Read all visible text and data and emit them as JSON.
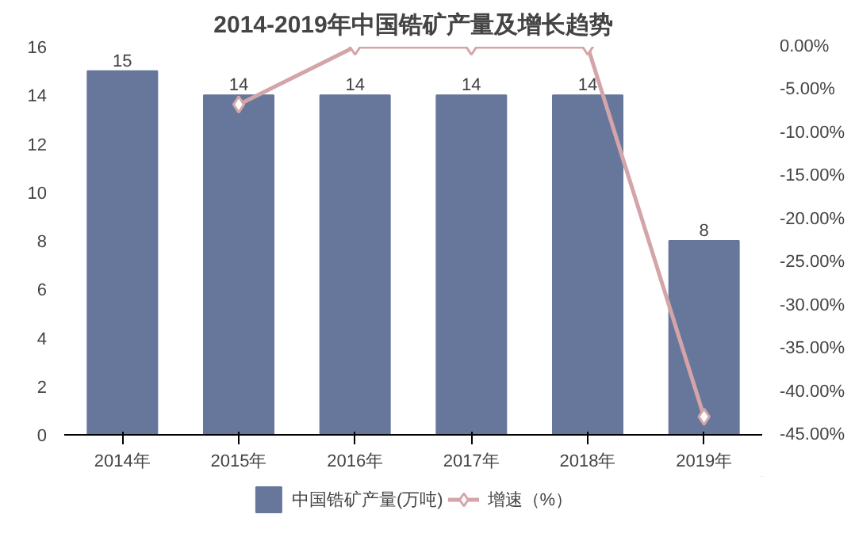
{
  "chart_data": {
    "type": "bar",
    "title": "2014-2019年中国锆矿产量及增长趋势",
    "categories": [
      "2014年",
      "2015年",
      "2016年",
      "2017年",
      "2018年",
      "2019年"
    ],
    "series": [
      {
        "name": "中国锆矿产量(万吨)",
        "color": "#67779b",
        "values": [
          15,
          14,
          14,
          14,
          14,
          8
        ],
        "value_labels": [
          "15",
          "14",
          "14",
          "14",
          "14",
          "8"
        ]
      },
      {
        "name": "增速（%）",
        "type": "line",
        "axis": "y2",
        "color": "#d4a5a8",
        "marker": "diamond",
        "values": [
          null,
          -6.7,
          0,
          0,
          0,
          -42.9
        ]
      }
    ],
    "ylim": [
      0,
      16
    ],
    "yticks": [
      0,
      2,
      4,
      6,
      8,
      10,
      12,
      14,
      16
    ],
    "y2lim": [
      -45,
      0
    ],
    "y2ticks": [
      {
        "value": 0,
        "label": "0.00%"
      },
      {
        "value": -5,
        "label": "-5.00%"
      },
      {
        "value": -10,
        "label": "-10.00%"
      },
      {
        "value": -15,
        "label": "-15.00%"
      },
      {
        "value": -20,
        "label": "-20.00%"
      },
      {
        "value": -25,
        "label": "-25.00%"
      },
      {
        "value": -30,
        "label": "-30.00%"
      },
      {
        "value": -35,
        "label": "-35.00%"
      },
      {
        "value": -40,
        "label": "-40.00%"
      },
      {
        "value": -45,
        "label": "-45.00%"
      }
    ],
    "grid": false,
    "legend": "bottom"
  }
}
